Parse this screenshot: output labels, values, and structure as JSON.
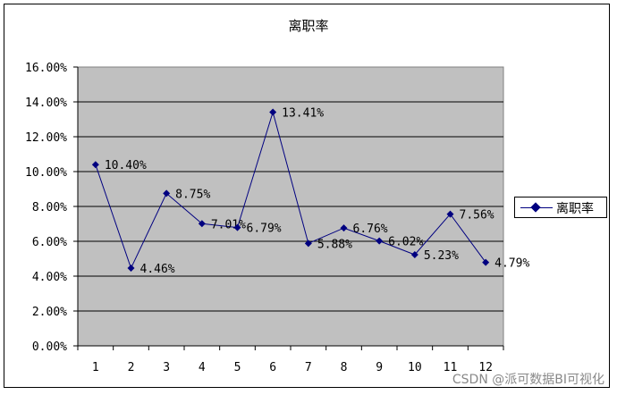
{
  "chart_data": {
    "type": "line",
    "title": "离职率",
    "categories": [
      "1",
      "2",
      "3",
      "4",
      "5",
      "6",
      "7",
      "8",
      "9",
      "10",
      "11",
      "12"
    ],
    "series": [
      {
        "name": "离职率",
        "values": [
          10.4,
          4.46,
          8.75,
          7.01,
          6.79,
          13.41,
          5.88,
          6.76,
          6.02,
          5.23,
          7.56,
          4.79
        ],
        "data_labels": [
          "10.40%",
          "4.46%",
          "8.75%",
          "7.01%",
          "6.79%",
          "13.41%",
          "5.88%",
          "6.76%",
          "6.02%",
          "5.23%",
          "7.56%",
          "4.79%"
        ]
      }
    ],
    "ylim": [
      0,
      16
    ],
    "y_ticks": [
      "0.00%",
      "2.00%",
      "4.00%",
      "6.00%",
      "8.00%",
      "10.00%",
      "12.00%",
      "14.00%",
      "16.00%"
    ],
    "grid": true,
    "legend_position": "right",
    "colors": {
      "line": "#000080",
      "plot_bg": "#c0c0c0"
    }
  },
  "watermark": "CSDN @派可数据BI可视化"
}
